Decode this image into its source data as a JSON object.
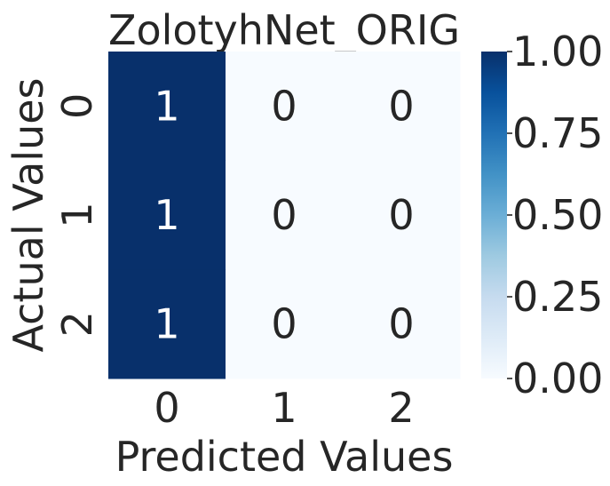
{
  "chart_data": {
    "type": "heatmap",
    "title": "ZolotyhNet_ORIG",
    "xlabel": "Predicted Values",
    "ylabel": "Actual Values",
    "x_categories": [
      "0",
      "1",
      "2"
    ],
    "y_categories": [
      "0",
      "1",
      "2"
    ],
    "values": [
      [
        1,
        0,
        0
      ],
      [
        1,
        0,
        0
      ],
      [
        1,
        0,
        0
      ]
    ],
    "value_labels": [
      [
        "1",
        "0",
        "0"
      ],
      [
        "1",
        "0",
        "0"
      ],
      [
        "1",
        "0",
        "0"
      ]
    ],
    "colormap": "Blues",
    "color_low": "#f7fbff",
    "color_high": "#08306b",
    "text_on_dark": "#ffffff",
    "text_on_light": "#262626",
    "colorbar": {
      "range": [
        0,
        1
      ],
      "ticks": [
        0,
        0.25,
        0.5,
        0.75,
        1
      ],
      "tick_labels": [
        "0.00",
        "0.25",
        "0.50",
        "0.75",
        "1.00"
      ]
    }
  }
}
